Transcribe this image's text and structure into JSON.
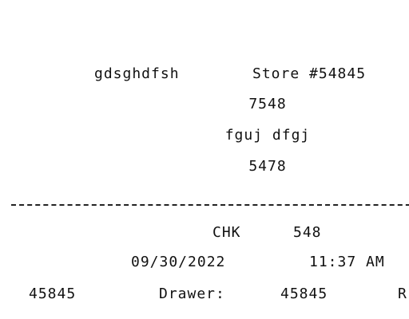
{
  "receipt": {
    "store_name": "gdsghdfsh",
    "store_label": "Store #54845",
    "line2": "7548",
    "line3": "fguj dfgj",
    "line4": "5478",
    "chk_label": "CHK",
    "chk_value": "548",
    "date": "09/30/2022",
    "time": "11:37 AM",
    "id_left": "45845",
    "drawer_label": "Drawer:",
    "drawer_value": "45845",
    "trailing": "R"
  }
}
